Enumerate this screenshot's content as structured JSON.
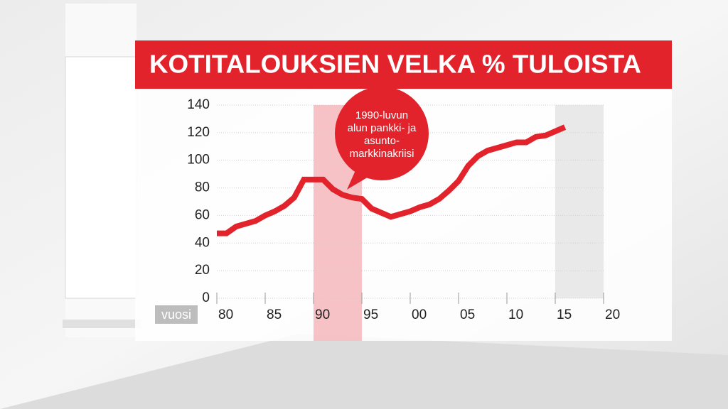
{
  "chart_data": {
    "type": "line",
    "title": "KOTITALOUKSIEN VELKA % TULOISTA",
    "x_label": "vuosi",
    "x": [
      1980,
      1981,
      1982,
      1983,
      1984,
      1985,
      1986,
      1987,
      1988,
      1989,
      1990,
      1991,
      1992,
      1993,
      1994,
      1995,
      1996,
      1997,
      1998,
      1999,
      2000,
      2001,
      2002,
      2003,
      2004,
      2005,
      2006,
      2007,
      2008,
      2009,
      2010,
      2011,
      2012,
      2013,
      2014,
      2015,
      2016
    ],
    "series": [
      {
        "color": "#e3232c",
        "values": [
          47,
          47,
          52,
          54,
          56,
          60,
          63,
          67,
          73,
          86,
          86,
          86,
          79,
          75,
          73,
          72,
          65,
          62,
          59,
          61,
          63,
          66,
          68,
          72,
          78,
          85,
          96,
          103,
          107,
          109,
          111,
          113,
          113,
          117,
          118,
          121,
          124
        ]
      }
    ],
    "xlim": [
      1980,
      2020
    ],
    "xticks": [
      {
        "value": 1980,
        "label": "80"
      },
      {
        "value": 1985,
        "label": "85"
      },
      {
        "value": 1990,
        "label": "90"
      },
      {
        "value": 1995,
        "label": "95"
      },
      {
        "value": 2000,
        "label": "00"
      },
      {
        "value": 2005,
        "label": "05"
      },
      {
        "value": 2010,
        "label": "10"
      },
      {
        "value": 2015,
        "label": "15"
      },
      {
        "value": 2020,
        "label": "20"
      }
    ],
    "ylim": [
      0,
      140
    ],
    "yticks": [
      0,
      20,
      40,
      60,
      80,
      100,
      120,
      140
    ],
    "grid": true,
    "shaded_regions": [
      {
        "x": [
          1990,
          1995
        ],
        "color": "#f4b3b6"
      },
      {
        "x": [
          2015,
          2020
        ],
        "color": "#e4e4e4"
      }
    ],
    "annotation": {
      "lines": [
        "1990-luvun",
        "alun pankki- ja",
        "asunto-",
        "markkinakriisi"
      ],
      "color": "#e3232c"
    }
  }
}
